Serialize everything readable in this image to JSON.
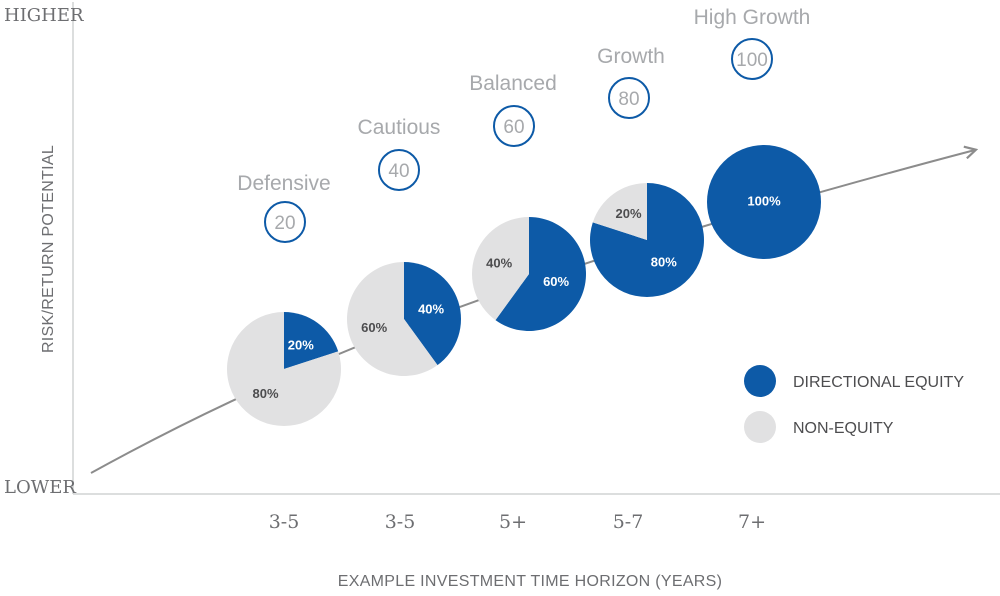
{
  "chart_data": {
    "type": "pie",
    "ylabel": "RISK/RETURN POTENTIAL",
    "ylabel_top": "HIGHER",
    "ylabel_bottom": "LOWER",
    "xlabel": "EXAMPLE INVESTMENT TIME HORIZON (YEARS)",
    "categories": [
      "3-5",
      "3-5",
      "5+",
      "5-7",
      "7+"
    ],
    "portfolios": [
      {
        "name": "Defensive",
        "score": "20",
        "horizon": "3-5",
        "equity": 20,
        "non_equity": 80
      },
      {
        "name": "Cautious",
        "score": "40",
        "horizon": "3-5",
        "equity": 40,
        "non_equity": 60
      },
      {
        "name": "Balanced",
        "score": "60",
        "horizon": "5+",
        "equity": 60,
        "non_equity": 40
      },
      {
        "name": "Growth",
        "score": "80",
        "horizon": "5-7",
        "equity": 80,
        "non_equity": 20
      },
      {
        "name": "High Growth",
        "score": "100",
        "horizon": "7+",
        "equity": 100,
        "non_equity": 0
      }
    ],
    "legend": [
      {
        "label": "DIRECTIONAL EQUITY",
        "color": "#0d5aa7"
      },
      {
        "label": "NON-EQUITY",
        "color": "#e1e1e2"
      }
    ],
    "legend_position": "right",
    "colors": {
      "equity": "#0d5aa7",
      "non_equity": "#e1e1e2",
      "axis": "#d1d3d4",
      "trend": "#8c8c8c",
      "text": "#a7a9ac"
    }
  }
}
